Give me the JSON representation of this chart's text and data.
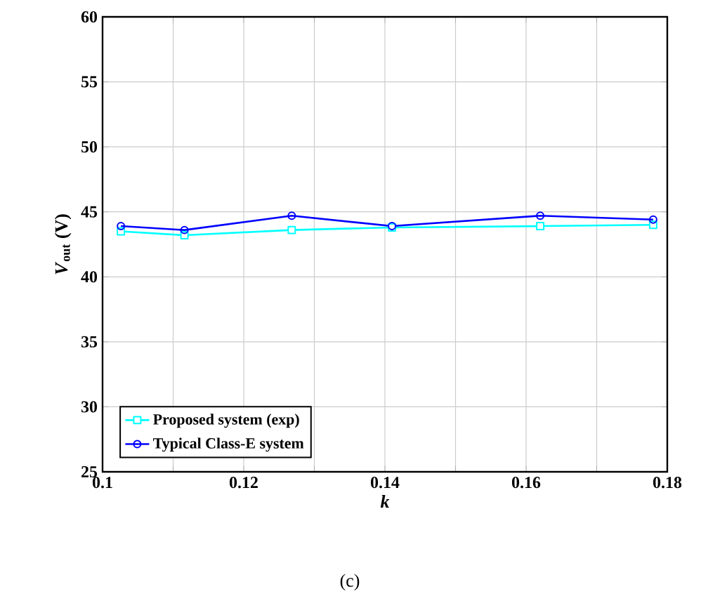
{
  "chart_data": {
    "type": "line",
    "xlabel": "k",
    "ylabel": "*V*$_{out}$ (V)",
    "annotations": [
      "(c)"
    ],
    "series": [
      {
        "name": "Proposed system (exp)",
        "color": "#00ffff",
        "marker": "square",
        "x": [
          0.1026,
          0.1116,
          0.1268,
          0.141,
          0.162,
          0.178
        ],
        "values": [
          43.5,
          43.2,
          43.6,
          43.8,
          43.9,
          44.0
        ]
      },
      {
        "name": "Typical Class-E system",
        "color": "#0000ff",
        "marker": "circle",
        "x": [
          0.1026,
          0.1116,
          0.1268,
          0.141,
          0.162,
          0.178
        ],
        "values": [
          43.9,
          43.6,
          44.7,
          43.9,
          44.7,
          44.4
        ]
      }
    ],
    "xlim": [
      0.1,
      0.18
    ],
    "xticks": [
      0.1,
      {
        "value": 0.11,
        "label": null
      },
      0.12,
      {
        "value": 0.13,
        "label": null
      },
      0.14,
      {
        "value": 0.15,
        "label": null
      },
      0.16,
      {
        "value": 0.17,
        "label": null
      },
      0.18
    ],
    "ylim": [
      25,
      60
    ],
    "yticks": [
      25,
      30,
      35,
      40,
      45,
      50,
      55,
      60
    ],
    "grid": true,
    "legend": "bottom left",
    "line_style": "solid"
  }
}
